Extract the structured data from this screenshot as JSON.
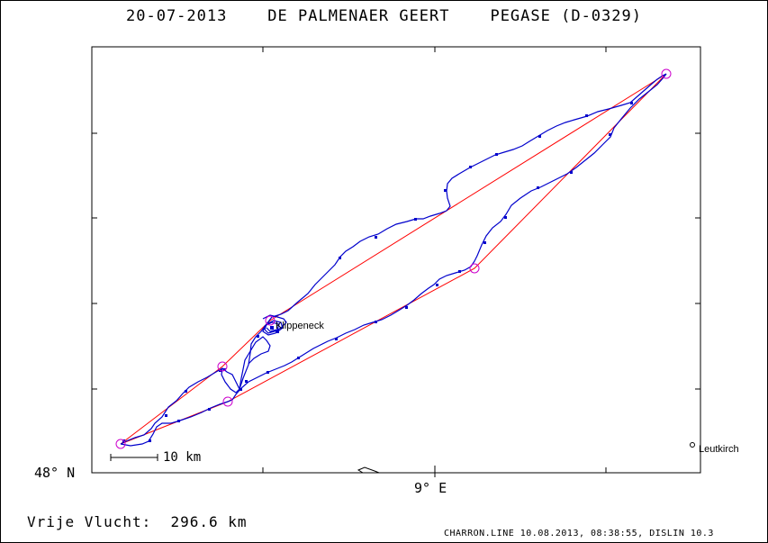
{
  "header": {
    "title": "20-07-2013    DE PALMENAER GEERT    PEGASE (D-0329)"
  },
  "map": {
    "lat_label": "48° N",
    "lon_label": "9° E",
    "scale_label": "10 km",
    "places": [
      {
        "name": "Klippeneck"
      },
      {
        "name": "Leutkirch"
      }
    ],
    "colors": {
      "track": "#0000cc",
      "task": "#ff0000",
      "turnpoint": "#cc00cc",
      "frame": "#000000"
    }
  },
  "footer": {
    "distance_label": "Vrije Vlucht:  296.6 km",
    "software_info": "CHARRON.LINE 10.08.2013, 08:38:55, DISLIN 10.3"
  }
}
